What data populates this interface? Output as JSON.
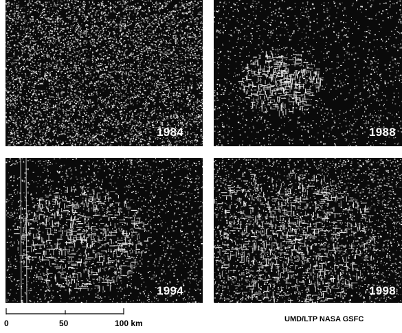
{
  "panels": [
    {
      "year": "1984",
      "speckle_density": 0.55,
      "cleared_patches": false
    },
    {
      "year": "1988",
      "speckle_density": 0.16,
      "cleared_patches": true
    },
    {
      "year": "1994",
      "speckle_density": 0.2,
      "cleared_patches": true
    },
    {
      "year": "1998",
      "speckle_density": 0.3,
      "cleared_patches": true
    }
  ],
  "scale_bar": {
    "labels": [
      "0",
      "50",
      "100 km"
    ],
    "values_km": [
      0,
      50,
      100
    ]
  },
  "credit": "UMD/LTP NASA GSFC",
  "colors": {
    "panel_background": "#0a0a0a",
    "speckle": "#f2f2f2",
    "label_text": "#ffffff",
    "page_background": "#ffffff",
    "scale_ink": "#000000"
  }
}
